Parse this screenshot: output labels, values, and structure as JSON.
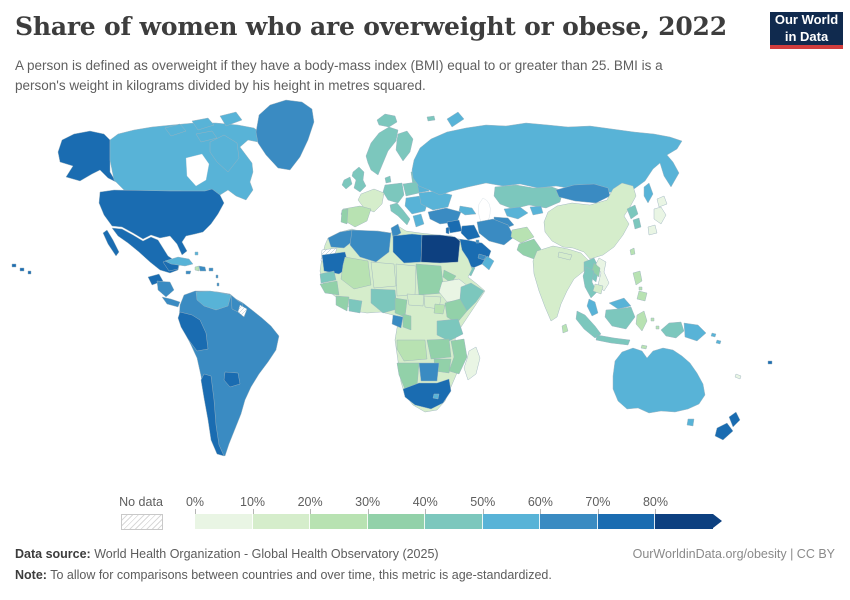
{
  "header": {
    "title": "Share of women who are overweight or obese, 2022",
    "subtitle": "A person is defined as overweight if they have a body-mass index (BMI) equal to or greater than 25. BMI is a person's weight in kilograms divided by his height in metres squared.",
    "logo": {
      "line1": "Our World",
      "line2": "in Data",
      "bg_color": "#102a4e",
      "accent_color": "#d13d3d"
    }
  },
  "legend": {
    "no_data_label": "No data"
  },
  "footer": {
    "source_label": "Data source:",
    "source_text": " World Health Organization - Global Health Observatory (2025)",
    "attribution": "OurWorldinData.org/obesity | CC BY",
    "note_label": "Note:",
    "note_text": " To allow for comparisons between countries and over time, this metric is age-standardized."
  },
  "chart_data": {
    "type": "choropleth_map",
    "title": "Share of women who are overweight or obese",
    "year": 2022,
    "unit": "%",
    "legend_position": "bottom",
    "tick_labels": [
      "0%",
      "10%",
      "20%",
      "30%",
      "40%",
      "50%",
      "60%",
      "70%",
      "80%"
    ],
    "bins": [
      {
        "label": "0-10%",
        "color": "#e9f5e4"
      },
      {
        "label": "10-20%",
        "color": "#d5edcb"
      },
      {
        "label": "20-30%",
        "color": "#b8e2b2"
      },
      {
        "label": "30-40%",
        "color": "#92d1a9"
      },
      {
        "label": "40-50%",
        "color": "#7cc7bd"
      },
      {
        "label": "50-60%",
        "color": "#58b3d7"
      },
      {
        "label": "60-70%",
        "color": "#3a8bc2"
      },
      {
        "label": "70-80%",
        "color": "#1a6cb1"
      },
      {
        "label": "80%+",
        "color": "#0d4080"
      }
    ],
    "no_data": {
      "label": "No data",
      "pattern": "diagonal-hatch"
    },
    "countries": [
      {
        "id": "usa",
        "name": "United States",
        "bin": "70-80%"
      },
      {
        "id": "canada",
        "name": "Canada",
        "bin": "50-60%"
      },
      {
        "id": "greenland",
        "name": "Greenland",
        "bin": "60-70%"
      },
      {
        "id": "mexico",
        "name": "Mexico",
        "bin": "70-80%"
      },
      {
        "id": "guatemala",
        "name": "Guatemala",
        "bin": "70-80%"
      },
      {
        "id": "honduras-nicaragua",
        "name": "Honduras / Nicaragua",
        "bin": "60-70%"
      },
      {
        "id": "costa-rica-panama",
        "name": "Costa Rica / Panama",
        "bin": "60-70%"
      },
      {
        "id": "cuba",
        "name": "Cuba",
        "bin": "50-60%"
      },
      {
        "id": "jamaica",
        "name": "Jamaica",
        "bin": "60-70%"
      },
      {
        "id": "haiti",
        "name": "Haiti",
        "bin": "20-30%"
      },
      {
        "id": "dominican-republic",
        "name": "Dominican Republic",
        "bin": "60-70%"
      },
      {
        "id": "puerto-rico",
        "name": "Puerto Rico",
        "bin": "60-70%"
      },
      {
        "id": "bahamas",
        "name": "Bahamas",
        "bin": "50-60%"
      },
      {
        "id": "south-america-base",
        "name": "Brazil / Argentina / Colombia / Bolivia / Ecuador / Uruguay",
        "bin": "60-70%"
      },
      {
        "id": "venezuela",
        "name": "Venezuela",
        "bin": "50-60%"
      },
      {
        "id": "guyana",
        "name": "Guyana",
        "bin": "60-70%"
      },
      {
        "id": "suriname",
        "name": "Suriname",
        "bin": "No data"
      },
      {
        "id": "peru",
        "name": "Peru",
        "bin": "70-80%"
      },
      {
        "id": "chile",
        "name": "Chile",
        "bin": "70-80%"
      },
      {
        "id": "paraguay",
        "name": "Paraguay",
        "bin": "70-80%"
      },
      {
        "id": "iceland",
        "name": "Iceland",
        "bin": "40-50%"
      },
      {
        "id": "uk",
        "name": "United Kingdom",
        "bin": "40-50%"
      },
      {
        "id": "ireland",
        "name": "Ireland",
        "bin": "40-50%"
      },
      {
        "id": "norway-sweden",
        "name": "Norway / Sweden",
        "bin": "40-50%"
      },
      {
        "id": "finland",
        "name": "Finland",
        "bin": "40-50%"
      },
      {
        "id": "denmark",
        "name": "Denmark",
        "bin": "40-50%"
      },
      {
        "id": "baltics",
        "name": "Baltic states",
        "bin": "40-50%"
      },
      {
        "id": "poland",
        "name": "Poland",
        "bin": "40-50%"
      },
      {
        "id": "germany-central",
        "name": "Germany / Central Europe",
        "bin": "40-50%"
      },
      {
        "id": "france",
        "name": "France",
        "bin": "10-20%"
      },
      {
        "id": "iberia",
        "name": "Spain",
        "bin": "20-30%"
      },
      {
        "id": "portugal",
        "name": "Portugal",
        "bin": "30-40%"
      },
      {
        "id": "italy",
        "name": "Italy",
        "bin": "40-50%"
      },
      {
        "id": "balkans",
        "name": "Balkans / Romania",
        "bin": "50-60%"
      },
      {
        "id": "greece",
        "name": "Greece",
        "bin": "50-60%"
      },
      {
        "id": "ukraine",
        "name": "Ukraine",
        "bin": "50-60%"
      },
      {
        "id": "belarus",
        "name": "Belarus",
        "bin": "50-60%"
      },
      {
        "id": "turkey",
        "name": "Turkey",
        "bin": "60-70%"
      },
      {
        "id": "caucasus",
        "name": "Caucasus",
        "bin": "50-60%"
      },
      {
        "id": "russia",
        "name": "Russia",
        "bin": "50-60%"
      },
      {
        "id": "kazakhstan",
        "name": "Kazakhstan",
        "bin": "40-50%"
      },
      {
        "id": "uzbekistan",
        "name": "Uzbekistan",
        "bin": "50-60%"
      },
      {
        "id": "turkmenistan",
        "name": "Turkmenistan",
        "bin": "60-70%"
      },
      {
        "id": "kyrgyz-tajik",
        "name": "Kyrgyzstan / Tajikistan",
        "bin": "50-60%"
      },
      {
        "id": "mongolia",
        "name": "Mongolia",
        "bin": "60-70%"
      },
      {
        "id": "china",
        "name": "China",
        "bin": "10-20%"
      },
      {
        "id": "north-korea",
        "name": "North Korea",
        "bin": "40-50%"
      },
      {
        "id": "south-korea",
        "name": "South Korea",
        "bin": "40-50%"
      },
      {
        "id": "japan",
        "name": "Japan",
        "bin": "0-10%"
      },
      {
        "id": "taiwan",
        "name": "Taiwan",
        "bin": "20-30%"
      },
      {
        "id": "india",
        "name": "India",
        "bin": "10-20%"
      },
      {
        "id": "nepal",
        "name": "Nepal",
        "bin": "10-20%"
      },
      {
        "id": "bangladesh",
        "name": "Bangladesh",
        "bin": "10-20%"
      },
      {
        "id": "sri-lanka",
        "name": "Sri Lanka",
        "bin": "20-30%"
      },
      {
        "id": "afghanistan",
        "name": "Afghanistan",
        "bin": "20-30%"
      },
      {
        "id": "pakistan",
        "name": "Pakistan",
        "bin": "30-40%"
      },
      {
        "id": "myanmar",
        "name": "Myanmar",
        "bin": "40-50%"
      },
      {
        "id": "vietnam",
        "name": "Vietnam",
        "bin": "0-10%"
      },
      {
        "id": "laos",
        "name": "Laos",
        "bin": "30-40%"
      },
      {
        "id": "thailand",
        "name": "Thailand",
        "bin": "40-50%"
      },
      {
        "id": "cambodia",
        "name": "Cambodia",
        "bin": "10-20%"
      },
      {
        "id": "malaysia",
        "name": "Malaysia",
        "bin": "50-60%"
      },
      {
        "id": "indonesia",
        "name": "Indonesia",
        "bin": "40-50%"
      },
      {
        "id": "indonesia-east",
        "name": "Indonesia (eastern islands)",
        "bin": "20-30%"
      },
      {
        "id": "west-papua",
        "name": "Indonesia (Papua)",
        "bin": "40-50%"
      },
      {
        "id": "philippines",
        "name": "Philippines",
        "bin": "20-30%"
      },
      {
        "id": "papua-new-guinea",
        "name": "Papua New Guinea",
        "bin": "50-60%"
      },
      {
        "id": "solomon-islands",
        "name": "Solomon Islands",
        "bin": "50-60%"
      },
      {
        "id": "fiji",
        "name": "Fiji",
        "bin": "70-80%"
      },
      {
        "id": "new-caledonia",
        "name": "New Caledonia",
        "bin": "0-10%"
      },
      {
        "id": "australia",
        "name": "Australia",
        "bin": "50-60%"
      },
      {
        "id": "new-zealand",
        "name": "New Zealand",
        "bin": "70-80%"
      },
      {
        "id": "syria-jordan",
        "name": "Syria / Jordan",
        "bin": "70-80%"
      },
      {
        "id": "israel-lebanon",
        "name": "Israel / Lebanon",
        "bin": "70-80%"
      },
      {
        "id": "iraq",
        "name": "Iraq",
        "bin": "70-80%"
      },
      {
        "id": "saudi-arabia",
        "name": "Saudi Arabia",
        "bin": "70-80%"
      },
      {
        "id": "yemen",
        "name": "Yemen",
        "bin": "40-50%"
      },
      {
        "id": "oman",
        "name": "Oman",
        "bin": "50-60%"
      },
      {
        "id": "uae",
        "name": "United Arab Emirates",
        "bin": "60-70%"
      },
      {
        "id": "kuwait",
        "name": "Kuwait",
        "bin": "60-70%"
      },
      {
        "id": "iran",
        "name": "Iran",
        "bin": "60-70%"
      },
      {
        "id": "morocco",
        "name": "Morocco",
        "bin": "60-70%"
      },
      {
        "id": "western-sahara",
        "name": "Western Sahara",
        "bin": "No data"
      },
      {
        "id": "algeria",
        "name": "Algeria",
        "bin": "60-70%"
      },
      {
        "id": "tunisia",
        "name": "Tunisia",
        "bin": "60-70%"
      },
      {
        "id": "libya",
        "name": "Libya",
        "bin": "70-80%"
      },
      {
        "id": "egypt",
        "name": "Egypt",
        "bin": "80%+"
      },
      {
        "id": "mauritania",
        "name": "Mauritania",
        "bin": "70-80%"
      },
      {
        "id": "senegal",
        "name": "Senegal",
        "bin": "40-50%"
      },
      {
        "id": "mali",
        "name": "Mali",
        "bin": "20-30%"
      },
      {
        "id": "niger",
        "name": "Niger",
        "bin": "10-20%"
      },
      {
        "id": "chad",
        "name": "Chad",
        "bin": "10-20%"
      },
      {
        "id": "sudan",
        "name": "Sudan",
        "bin": "30-40%"
      },
      {
        "id": "eritrea",
        "name": "Eritrea",
        "bin": "30-40%"
      },
      {
        "id": "ethiopia",
        "name": "Ethiopia",
        "bin": "0-10%"
      },
      {
        "id": "somalia",
        "name": "Somalia",
        "bin": "40-50%"
      },
      {
        "id": "guinea-region",
        "name": "Guinea region",
        "bin": "30-40%"
      },
      {
        "id": "ivory-coast",
        "name": "Côte d'Ivoire",
        "bin": "30-40%"
      },
      {
        "id": "ghana-benin",
        "name": "Ghana / Benin",
        "bin": "40-50%"
      },
      {
        "id": "nigeria",
        "name": "Nigeria",
        "bin": "40-50%"
      },
      {
        "id": "cameroon",
        "name": "Cameroon",
        "bin": "30-40%"
      },
      {
        "id": "central-african-republic",
        "name": "Central African Republic",
        "bin": "10-20%"
      },
      {
        "id": "south-sudan",
        "name": "South Sudan",
        "bin": "10-20%"
      },
      {
        "id": "africa-base",
        "name": "DR Congo (interior fill)",
        "bin": "10-20%"
      },
      {
        "id": "uganda",
        "name": "Uganda",
        "bin": "20-30%"
      },
      {
        "id": "kenya",
        "name": "Kenya",
        "bin": "30-40%"
      },
      {
        "id": "tanzania",
        "name": "Tanzania",
        "bin": "40-50%"
      },
      {
        "id": "gabon",
        "name": "Gabon",
        "bin": "60-70%"
      },
      {
        "id": "congo",
        "name": "Congo",
        "bin": "30-40%"
      },
      {
        "id": "angola",
        "name": "Angola",
        "bin": "20-30%"
      },
      {
        "id": "zambia",
        "name": "Zambia",
        "bin": "30-40%"
      },
      {
        "id": "mozambique",
        "name": "Mozambique / Malawi",
        "bin": "30-40%"
      },
      {
        "id": "zimbabwe",
        "name": "Zimbabwe",
        "bin": "30-40%"
      },
      {
        "id": "namibia",
        "name": "Namibia",
        "bin": "30-40%"
      },
      {
        "id": "botswana",
        "name": "Botswana",
        "bin": "60-70%"
      },
      {
        "id": "south-africa",
        "name": "South Africa",
        "bin": "70-80%"
      },
      {
        "id": "lesotho",
        "name": "Lesotho",
        "bin": "50-60%"
      },
      {
        "id": "madagascar",
        "name": "Madagascar",
        "bin": "0-10%"
      }
    ]
  }
}
